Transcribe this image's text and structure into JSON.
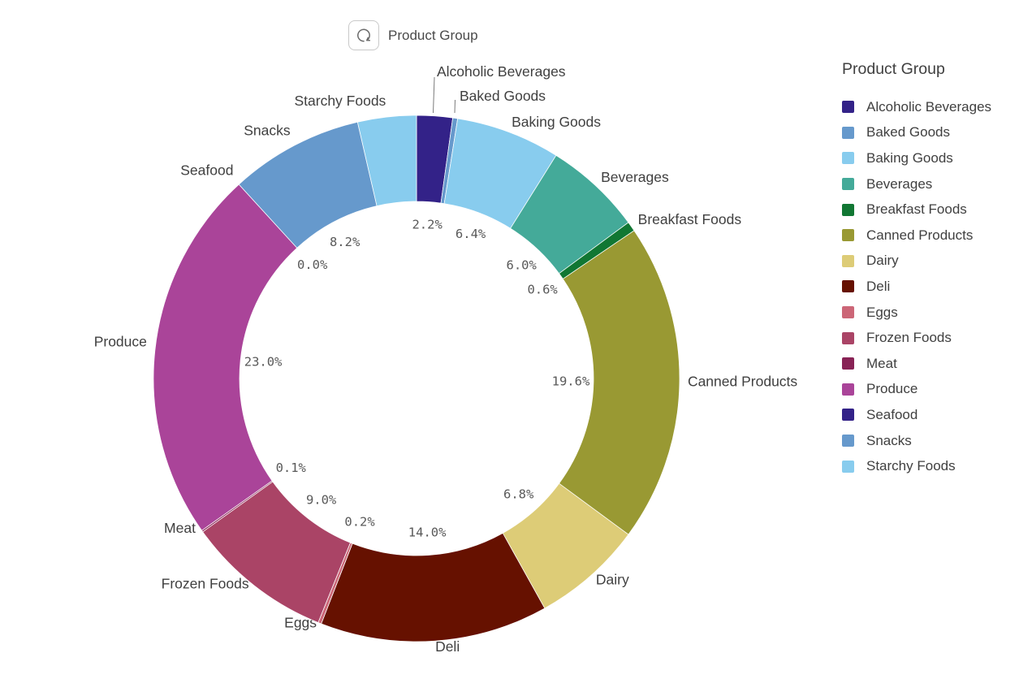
{
  "header": {
    "cycle_button": {
      "label": "Product Group"
    }
  },
  "legend": {
    "title": "Product Group"
  },
  "chart_data": {
    "type": "pie",
    "subtype": "donut",
    "title": "Product Group",
    "unit": "%",
    "legend_position": "right",
    "slices": [
      {
        "label": "Alcoholic Beverages",
        "value": 2.2,
        "pct_text": "2.2%",
        "pct_visible": true,
        "color": "#332288"
      },
      {
        "label": "Baked Goods",
        "value": 0.3,
        "pct_text": null,
        "pct_visible": false,
        "color": "#6699CC"
      },
      {
        "label": "Baking Goods",
        "value": 6.4,
        "pct_text": "6.4%",
        "pct_visible": true,
        "color": "#88CCEE"
      },
      {
        "label": "Beverages",
        "value": 6.0,
        "pct_text": "6.0%",
        "pct_visible": true,
        "color": "#44AA99"
      },
      {
        "label": "Breakfast Foods",
        "value": 0.6,
        "pct_text": "0.6%",
        "pct_visible": true,
        "color": "#117733"
      },
      {
        "label": "Canned Products",
        "value": 19.6,
        "pct_text": "19.6%",
        "pct_visible": true,
        "color": "#999933"
      },
      {
        "label": "Dairy",
        "value": 6.8,
        "pct_text": "6.8%",
        "pct_visible": true,
        "color": "#DDCC77"
      },
      {
        "label": "Deli",
        "value": 14.0,
        "pct_text": "14.0%",
        "pct_visible": true,
        "color": "#661100"
      },
      {
        "label": "Eggs",
        "value": 0.2,
        "pct_text": "0.2%",
        "pct_visible": true,
        "color": "#CC6677"
      },
      {
        "label": "Frozen Foods",
        "value": 9.0,
        "pct_text": "9.0%",
        "pct_visible": true,
        "color": "#AA4466"
      },
      {
        "label": "Meat",
        "value": 0.1,
        "pct_text": "0.1%",
        "pct_visible": true,
        "color": "#882255"
      },
      {
        "label": "Produce",
        "value": 23.0,
        "pct_text": "23.0%",
        "pct_visible": true,
        "color": "#AA4499"
      },
      {
        "label": "Seafood",
        "value": 0.0,
        "pct_text": "0.0%",
        "pct_visible": true,
        "color": "#332288"
      },
      {
        "label": "Snacks",
        "value": 8.2,
        "pct_text": "8.2%",
        "pct_visible": true,
        "color": "#6699CC"
      },
      {
        "label": "Starchy Foods",
        "value": 3.6,
        "pct_text": null,
        "pct_visible": false,
        "color": "#88CCEE"
      }
    ]
  }
}
